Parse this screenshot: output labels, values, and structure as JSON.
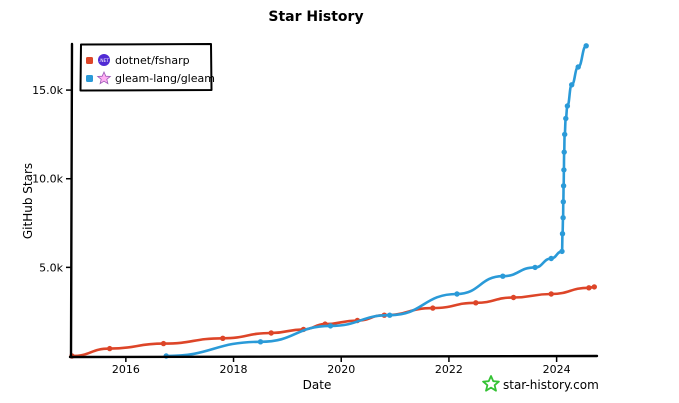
{
  "chart_data": {
    "type": "line",
    "title": "Star History",
    "xlabel": "Date",
    "ylabel": "GitHub Stars",
    "x_ticks": [
      "2016",
      "2018",
      "2020",
      "2022",
      "2024"
    ],
    "y_ticks": [
      "5.0k",
      "10.0k",
      "15.0k"
    ],
    "y_tick_values": [
      5000,
      10000,
      15000
    ],
    "x_tick_values": [
      2016,
      2018,
      2020,
      2022,
      2024
    ],
    "xlim": [
      2015.0,
      2024.75
    ],
    "ylim": [
      0,
      17600
    ],
    "legend_position": "top-left",
    "series": [
      {
        "name": "dotnet/fsharp",
        "color": "#dd4528",
        "icon": "dotnet-icon",
        "x": [
          2015.0,
          2015.7,
          2016.7,
          2017.8,
          2018.7,
          2019.3,
          2019.7,
          2020.3,
          2020.8,
          2021.7,
          2022.5,
          2023.2,
          2023.9,
          2024.6,
          2024.7
        ],
        "y": [
          0,
          420,
          700,
          1000,
          1300,
          1500,
          1800,
          2000,
          2300,
          2700,
          3000,
          3300,
          3500,
          3850,
          3900
        ]
      },
      {
        "name": "gleam-lang/gleam",
        "color": "#2a9ad8",
        "icon": "gleam-star-icon",
        "x": [
          2016.75,
          2018.5,
          2019.8,
          2020.9,
          2022.15,
          2023.0,
          2023.6,
          2023.9,
          2024.1,
          2024.11,
          2024.12,
          2024.125,
          2024.13,
          2024.135,
          2024.14,
          2024.15,
          2024.17,
          2024.2,
          2024.28,
          2024.4,
          2024.55
        ],
        "y": [
          0,
          800,
          1700,
          2300,
          3500,
          4500,
          5000,
          5500,
          5900,
          6900,
          7800,
          8700,
          9600,
          10500,
          11500,
          12500,
          13400,
          14100,
          15300,
          16300,
          17500
        ]
      }
    ]
  },
  "watermark": {
    "text": "star-history.com",
    "icon": "star-history-logo-icon",
    "color": "#34c234"
  }
}
